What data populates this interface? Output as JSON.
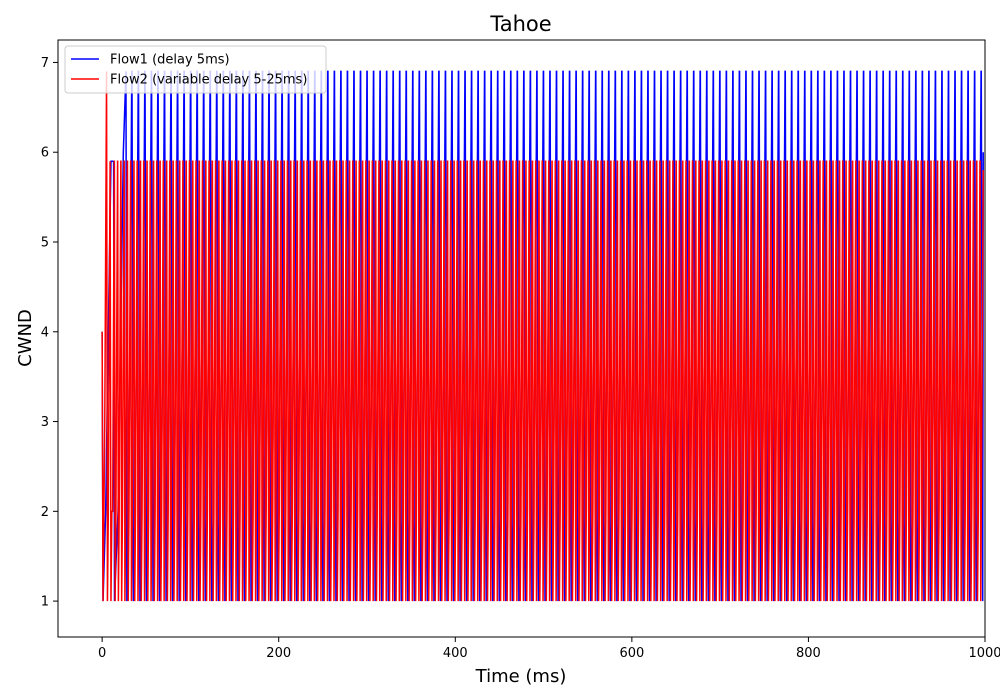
{
  "chart_data": {
    "type": "line",
    "title": "Tahoe",
    "xlabel": "Time (ms)",
    "ylabel": "CWND",
    "xlim": [
      -50,
      1000
    ],
    "ylim": [
      0.6,
      7.25
    ],
    "x_ticks": [
      0,
      200,
      400,
      600,
      800,
      1000
    ],
    "y_ticks": [
      1,
      2,
      3,
      4,
      5,
      6,
      7
    ],
    "x_tick_labels": [
      "0",
      "200",
      "400",
      "600",
      "800",
      "1000"
    ],
    "y_tick_labels": [
      "1",
      "2",
      "3",
      "4",
      "5",
      "6",
      "7"
    ],
    "grid": false,
    "legend_position": "upper-left",
    "series": [
      {
        "name": "Flow1 (delay 5ms)",
        "color": "#0000ff",
        "pattern": "periodic cycles between 1 and ~6.9 (first peak ~5.9) with period ~7.4 ms from t=0 to t=1000",
        "x": [
          0,
          1,
          4,
          7,
          10,
          13,
          14,
          18,
          21,
          24,
          27,
          28
        ],
        "y": [
          4,
          1,
          2,
          4,
          5.9,
          5.9,
          1,
          2,
          4,
          6,
          6.9,
          1
        ]
      },
      {
        "name": "Flow2 (variable delay 5-25ms)",
        "color": "#ff0000",
        "pattern": "dense oscillation between 1 and ~5.9 (first peak ~6.9) with period ~3.7 ms from t=0 to t=1000",
        "x": [
          0,
          1,
          3,
          5,
          6,
          7,
          8,
          9,
          10,
          11
        ],
        "y": [
          4,
          1,
          3,
          6.9,
          1,
          2,
          4,
          5.9,
          1,
          2
        ]
      }
    ]
  }
}
